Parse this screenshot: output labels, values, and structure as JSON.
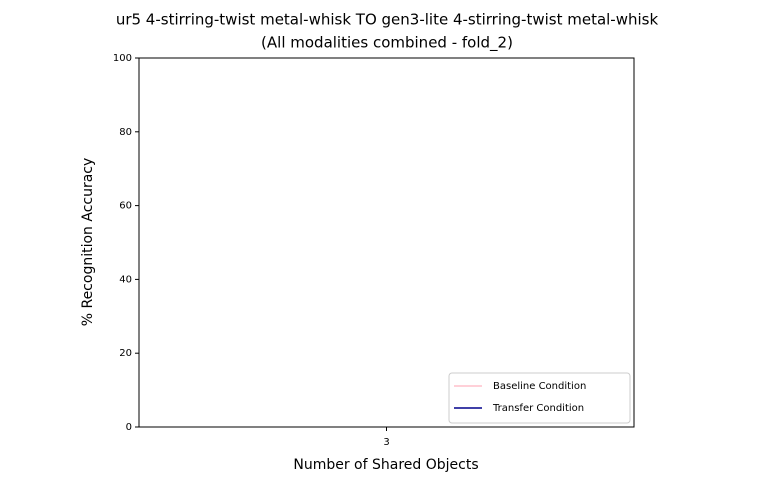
{
  "chart_data": {
    "type": "line",
    "title": [
      "ur5 4-stirring-twist metal-whisk TO gen3-lite 4-stirring-twist metal-whisk",
      "(All modalities combined - fold_2)"
    ],
    "x_label": "Number of Shared Objects",
    "y_label": "% Recognition Accuracy",
    "categories": [
      "3"
    ],
    "series": [
      {
        "name": "Baseline Condition",
        "color": "#ffc0cb",
        "values": [
          null
        ]
      },
      {
        "name": "Transfer Condition",
        "color": "#00008b",
        "values": [
          null
        ]
      }
    ],
    "ylim": [
      0,
      100
    ],
    "yticks": [
      0,
      20,
      40,
      60,
      80,
      100
    ],
    "legend": "lower right"
  }
}
